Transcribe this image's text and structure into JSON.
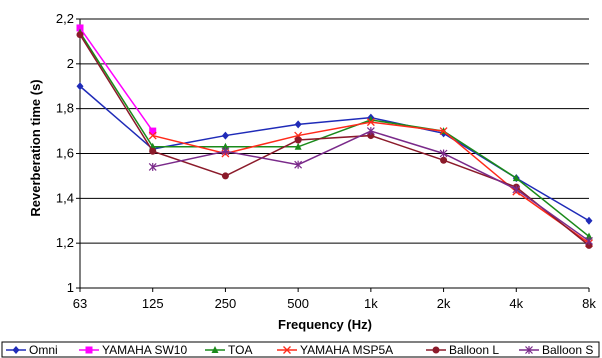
{
  "chart_data": {
    "type": "line",
    "title": "",
    "xlabel": "Frequency (Hz)",
    "ylabel": "Reverberation time (s)",
    "categories": [
      "63",
      "125",
      "250",
      "500",
      "1k",
      "2k",
      "4k",
      "8k"
    ],
    "ylim": [
      1,
      2.2
    ],
    "yticks": [
      "1",
      "1,2",
      "1,4",
      "1,6",
      "1,8",
      "2",
      "2,2"
    ],
    "grid": "horizontal",
    "legend_position": "bottom",
    "series": [
      {
        "name": "Omni",
        "color": "#1f2bb8",
        "marker": "diamond",
        "values": [
          1.9,
          1.62,
          1.68,
          1.73,
          1.76,
          1.69,
          1.49,
          1.3
        ]
      },
      {
        "name": "YAMAHA SW10",
        "color": "#ff00ff",
        "marker": "square",
        "values": [
          2.16,
          1.7,
          null,
          null,
          null,
          null,
          null,
          null
        ]
      },
      {
        "name": "TOA",
        "color": "#1a8a1a",
        "marker": "triangle",
        "values": [
          2.14,
          1.63,
          1.63,
          1.63,
          1.75,
          1.7,
          1.49,
          1.23
        ]
      },
      {
        "name": "YAMAHA MSP5A",
        "color": "#ff2a1a",
        "marker": "x",
        "values": [
          null,
          1.68,
          1.6,
          1.68,
          1.74,
          1.7,
          1.43,
          1.2
        ]
      },
      {
        "name": "Balloon L",
        "color": "#8b1a2a",
        "marker": "circle",
        "values": [
          2.13,
          1.61,
          1.5,
          1.66,
          1.68,
          1.57,
          1.45,
          1.19
        ]
      },
      {
        "name": "Balloon S",
        "color": "#7a2a8a",
        "marker": "asterisk",
        "values": [
          null,
          1.54,
          1.61,
          1.55,
          1.7,
          1.6,
          1.44,
          1.21
        ]
      }
    ]
  }
}
